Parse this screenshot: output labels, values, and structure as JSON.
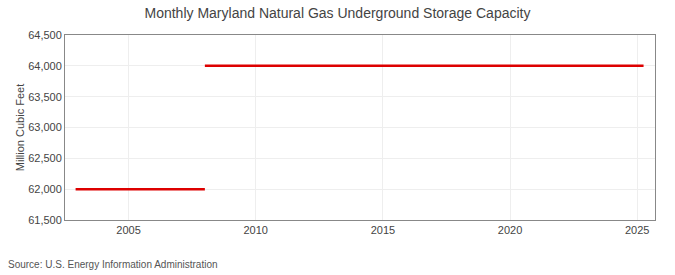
{
  "chart_data": {
    "type": "line",
    "title": "Monthly Maryland Natural Gas Underground Storage Capacity",
    "ylabel": "Million Cubic Feet",
    "annotations": [
      "Source: U.S. Energy Information Administration"
    ],
    "x": [
      2002.917,
      2008.0,
      2008.0,
      2008.0,
      2025.25
    ],
    "values": [
      62000,
      62000,
      null,
      64000,
      64000
    ],
    "color": "#dd0000",
    "xlim": [
      2002.5,
      2025.7
    ],
    "xticks": [
      2005,
      2010,
      2015,
      2020,
      2025
    ],
    "ylim": [
      61500,
      64500
    ],
    "yticks": [
      {
        "value": 61500,
        "label": "61,500"
      },
      {
        "value": 62000,
        "label": "62,000"
      },
      {
        "value": 62500,
        "label": "62,500"
      },
      {
        "value": 63000,
        "label": "63,000"
      },
      {
        "value": 63500,
        "label": "63,500"
      },
      {
        "value": 64000,
        "label": "64,000"
      },
      {
        "value": 64500,
        "label": "64,500"
      }
    ],
    "grid": true
  }
}
